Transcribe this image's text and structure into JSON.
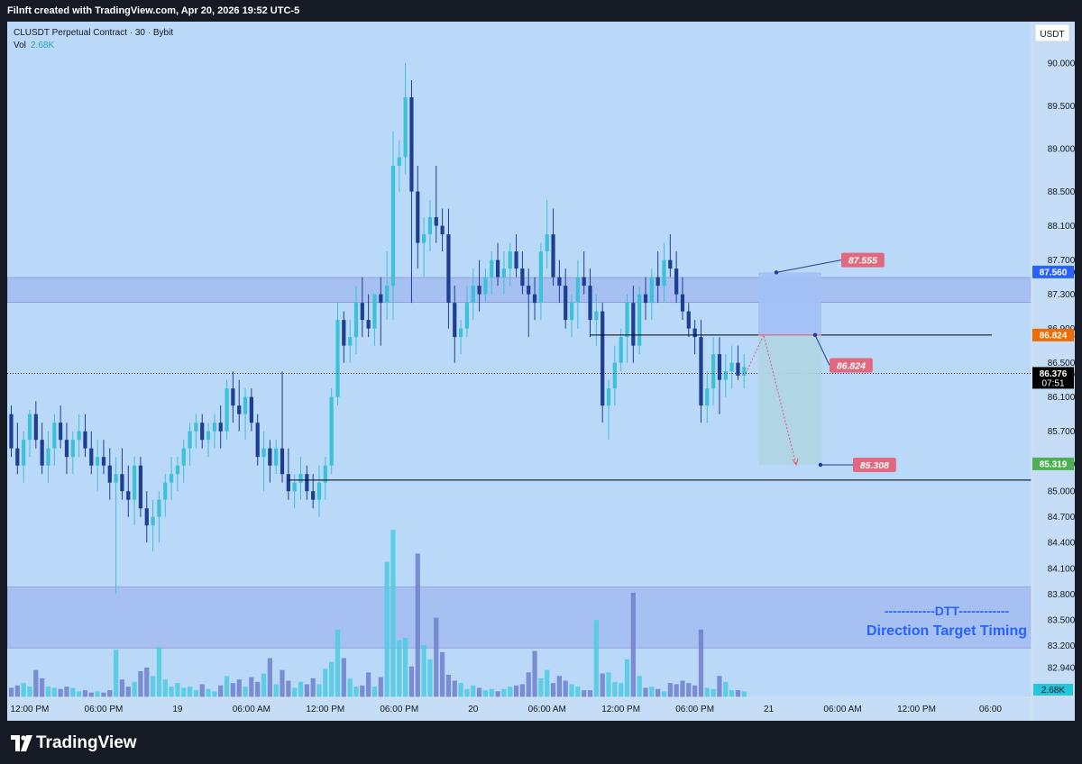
{
  "header": {
    "credit": "Filnft created with TradingView.com, Apr 20, 2026 19:52 UTC-5"
  },
  "legend": {
    "symbol": "CLUSDT Perpetual Contract · 30 · Bybit",
    "vol_label": "Vol",
    "vol_value": "2.68K"
  },
  "currency_button": "USDT",
  "footer": {
    "brand": "TradingView"
  },
  "annotation": {
    "line1": "------------DTT------------",
    "line2": "Direction Target Timing"
  },
  "colors": {
    "bull": "#3bc1d9",
    "bear": "#1c3f94",
    "plot_bg": "#bad8f8",
    "zone": "#9fb8ef",
    "stop": "#e0697f",
    "target": "#4caf50",
    "last": "#000000"
  },
  "chart_data": {
    "type": "candlestick",
    "symbol": "CLUSDT Perpetual Contract",
    "interval": "30",
    "exchange": "Bybit",
    "ylim": [
      82.8,
      90.3
    ],
    "y_ticks": [
      "82.940",
      "83.200",
      "83.500",
      "83.800",
      "84.100",
      "84.400",
      "84.700",
      "85.000",
      "85.319",
      "85.700",
      "86.100",
      "86.376",
      "86.500",
      "86.824",
      "86.900",
      "87.300",
      "87.560",
      "87.700",
      "88.100",
      "88.500",
      "89.000",
      "89.500",
      "90.000"
    ],
    "x_labels": [
      {
        "i": 3,
        "label": "12:00 PM"
      },
      {
        "i": 15,
        "label": "06:00 PM"
      },
      {
        "i": 27,
        "label": "19"
      },
      {
        "i": 39,
        "label": "06:00 AM"
      },
      {
        "i": 51,
        "label": "12:00 PM"
      },
      {
        "i": 63,
        "label": "06:00 PM"
      },
      {
        "i": 75,
        "label": "20"
      },
      {
        "i": 87,
        "label": "06:00 AM"
      },
      {
        "i": 99,
        "label": "12:00 PM"
      },
      {
        "i": 111,
        "label": "06:00 PM"
      },
      {
        "i": 123,
        "label": "21"
      },
      {
        "i": 135,
        "label": "06:00 AM"
      },
      {
        "i": 147,
        "label": "12:00 PM"
      },
      {
        "i": 159,
        "label": "06:00"
      }
    ],
    "volume_current": "2.68K",
    "candles": [
      [
        85.9,
        86.0,
        85.4,
        85.5,
        0.8
      ],
      [
        85.5,
        85.8,
        85.2,
        85.3,
        1.0
      ],
      [
        85.3,
        85.7,
        85.1,
        85.6,
        1.2
      ],
      [
        85.6,
        85.95,
        85.4,
        85.9,
        0.9
      ],
      [
        85.9,
        86.05,
        85.5,
        85.6,
        2.3
      ],
      [
        85.6,
        85.8,
        85.2,
        85.3,
        1.6
      ],
      [
        85.3,
        85.7,
        85.1,
        85.5,
        0.9
      ],
      [
        85.5,
        85.9,
        85.3,
        85.8,
        0.8
      ],
      [
        85.8,
        86.0,
        85.5,
        85.6,
        0.7
      ],
      [
        85.6,
        85.8,
        85.2,
        85.4,
        0.9
      ],
      [
        85.4,
        85.7,
        85.2,
        85.6,
        0.8
      ],
      [
        85.6,
        85.9,
        85.4,
        85.7,
        0.5
      ],
      [
        85.7,
        85.9,
        85.4,
        85.5,
        0.6
      ],
      [
        85.5,
        85.7,
        85.2,
        85.3,
        0.4
      ],
      [
        85.3,
        85.6,
        85.0,
        85.4,
        0.5
      ],
      [
        85.4,
        85.6,
        85.2,
        85.3,
        0.4
      ],
      [
        85.3,
        85.5,
        84.9,
        85.1,
        0.6
      ],
      [
        85.1,
        85.4,
        83.8,
        85.2,
        4.0
      ],
      [
        85.2,
        85.5,
        84.9,
        85.0,
        1.5
      ],
      [
        85.0,
        85.3,
        84.7,
        84.9,
        0.9
      ],
      [
        84.9,
        85.4,
        84.6,
        85.3,
        1.3
      ],
      [
        85.3,
        85.4,
        84.7,
        84.8,
        2.2
      ],
      [
        84.8,
        85.0,
        84.4,
        84.6,
        2.5
      ],
      [
        84.6,
        84.9,
        84.3,
        84.7,
        1.8
      ],
      [
        84.7,
        85.0,
        84.4,
        84.9,
        4.2
      ],
      [
        84.9,
        85.2,
        84.7,
        85.1,
        1.5
      ],
      [
        85.1,
        85.4,
        84.9,
        85.2,
        0.9
      ],
      [
        85.2,
        85.4,
        85.0,
        85.3,
        1.2
      ],
      [
        85.3,
        85.6,
        85.1,
        85.5,
        0.8
      ],
      [
        85.5,
        85.8,
        85.3,
        85.7,
        0.9
      ],
      [
        85.7,
        85.9,
        85.5,
        85.8,
        0.6
      ],
      [
        85.8,
        85.9,
        85.5,
        85.6,
        1.1
      ],
      [
        85.6,
        85.8,
        85.4,
        85.7,
        0.7
      ],
      [
        85.7,
        85.9,
        85.5,
        85.8,
        0.5
      ],
      [
        85.8,
        86.0,
        85.5,
        85.7,
        1.0
      ],
      [
        85.7,
        86.3,
        85.6,
        86.2,
        1.8
      ],
      [
        86.2,
        86.4,
        85.8,
        86.0,
        1.2
      ],
      [
        86.0,
        86.3,
        85.7,
        85.9,
        1.5
      ],
      [
        85.9,
        86.2,
        85.6,
        86.1,
        0.9
      ],
      [
        86.1,
        86.2,
        85.7,
        85.8,
        1.7
      ],
      [
        85.8,
        85.9,
        85.3,
        85.4,
        1.3
      ],
      [
        85.4,
        85.7,
        85.0,
        85.5,
        2.0
      ],
      [
        85.5,
        85.6,
        85.1,
        85.3,
        3.3
      ],
      [
        85.3,
        85.6,
        85.2,
        85.5,
        1.1
      ],
      [
        85.5,
        86.4,
        85.1,
        85.2,
        2.3
      ],
      [
        85.2,
        85.5,
        84.9,
        85.0,
        1.4
      ],
      [
        85.0,
        85.2,
        84.8,
        85.1,
        0.8
      ],
      [
        85.1,
        85.4,
        84.9,
        85.2,
        1.3
      ],
      [
        85.2,
        85.3,
        84.9,
        85.0,
        1.1
      ],
      [
        85.0,
        85.2,
        84.8,
        84.9,
        1.6
      ],
      [
        84.9,
        85.3,
        84.7,
        85.1,
        1.1
      ],
      [
        85.1,
        85.4,
        84.9,
        85.3,
        2.4
      ],
      [
        85.3,
        86.2,
        85.2,
        86.1,
        3.0
      ],
      [
        86.1,
        87.2,
        86.0,
        87.0,
        5.7
      ],
      [
        87.0,
        87.1,
        86.5,
        86.7,
        3.3
      ],
      [
        86.7,
        87.0,
        86.5,
        86.8,
        1.6
      ],
      [
        86.8,
        87.4,
        86.6,
        87.2,
        0.9
      ],
      [
        87.2,
        87.5,
        86.8,
        87.0,
        1.0
      ],
      [
        87.0,
        87.3,
        86.8,
        86.9,
        2.1
      ],
      [
        86.9,
        87.3,
        86.7,
        87.3,
        0.9
      ],
      [
        87.3,
        87.5,
        86.7,
        87.2,
        1.7
      ],
      [
        87.2,
        87.8,
        87.0,
        87.4,
        11.4
      ],
      [
        87.4,
        89.2,
        87.0,
        88.8,
        14.1
      ],
      [
        88.8,
        89.1,
        88.5,
        88.9,
        4.8
      ],
      [
        88.9,
        90.0,
        88.7,
        89.6,
        5.0
      ],
      [
        89.6,
        89.8,
        87.2,
        88.5,
        2.6
      ],
      [
        88.5,
        88.8,
        87.6,
        87.9,
        12.1
      ],
      [
        87.9,
        88.2,
        87.5,
        88.0,
        4.4
      ],
      [
        88.0,
        88.4,
        87.8,
        88.2,
        3.2
      ],
      [
        88.2,
        88.8,
        87.9,
        88.1,
        6.7
      ],
      [
        88.1,
        88.3,
        87.8,
        88.0,
        3.8
      ],
      [
        88.0,
        88.3,
        86.9,
        87.2,
        1.9
      ],
      [
        87.2,
        87.4,
        86.5,
        86.8,
        1.4
      ],
      [
        86.8,
        87.0,
        86.6,
        86.9,
        1.2
      ],
      [
        86.9,
        87.4,
        86.8,
        87.2,
        0.7
      ],
      [
        87.2,
        87.6,
        87.0,
        87.4,
        1.0
      ],
      [
        87.4,
        87.7,
        87.1,
        87.3,
        0.8
      ],
      [
        87.3,
        87.6,
        87.2,
        87.5,
        0.6
      ],
      [
        87.5,
        87.8,
        87.3,
        87.7,
        0.7
      ],
      [
        87.7,
        87.9,
        87.4,
        87.5,
        0.5
      ],
      [
        87.5,
        87.8,
        87.3,
        87.6,
        0.7
      ],
      [
        87.6,
        87.9,
        87.4,
        87.8,
        0.9
      ],
      [
        87.8,
        88.0,
        87.5,
        87.6,
        1.0
      ],
      [
        87.6,
        87.8,
        87.3,
        87.4,
        1.1
      ],
      [
        87.4,
        87.6,
        86.8,
        87.3,
        2.1
      ],
      [
        87.3,
        87.5,
        87.0,
        87.2,
        3.9
      ],
      [
        87.2,
        87.9,
        87.0,
        87.8,
        1.6
      ],
      [
        87.8,
        88.4,
        87.6,
        88.0,
        2.3
      ],
      [
        88.0,
        88.3,
        87.4,
        87.5,
        1.2
      ],
      [
        87.5,
        87.7,
        87.2,
        87.4,
        1.8
      ],
      [
        87.4,
        87.6,
        86.9,
        87.0,
        1.4
      ],
      [
        87.0,
        87.3,
        86.8,
        87.2,
        1.1
      ],
      [
        87.2,
        87.7,
        86.9,
        87.5,
        0.9
      ],
      [
        87.5,
        87.8,
        87.3,
        87.4,
        0.6
      ],
      [
        87.4,
        87.6,
        86.8,
        87.0,
        0.6
      ],
      [
        87.0,
        87.3,
        86.7,
        87.1,
        6.5
      ],
      [
        87.1,
        87.2,
        85.8,
        86.0,
        2.0
      ],
      [
        86.0,
        86.3,
        85.6,
        86.2,
        2.1
      ],
      [
        86.2,
        86.7,
        86.0,
        86.5,
        1.3
      ],
      [
        86.5,
        86.9,
        86.4,
        86.8,
        1.2
      ],
      [
        86.8,
        87.3,
        86.5,
        87.2,
        3.2
      ],
      [
        87.2,
        87.4,
        86.5,
        86.7,
        8.8
      ],
      [
        86.7,
        87.4,
        86.6,
        87.3,
        1.8
      ],
      [
        87.3,
        87.5,
        87.0,
        87.2,
        0.8
      ],
      [
        87.2,
        87.6,
        87.0,
        87.5,
        0.9
      ],
      [
        87.5,
        87.8,
        87.2,
        87.4,
        0.7
      ],
      [
        87.4,
        87.9,
        87.2,
        87.7,
        0.5
      ],
      [
        87.7,
        88.0,
        87.5,
        87.6,
        1.2
      ],
      [
        87.6,
        87.8,
        87.2,
        87.3,
        1.1
      ],
      [
        87.3,
        87.5,
        87.0,
        87.1,
        1.4
      ],
      [
        87.1,
        87.2,
        86.8,
        86.9,
        1.2
      ],
      [
        86.9,
        87.0,
        86.6,
        86.8,
        1.0
      ],
      [
        86.8,
        87.0,
        85.8,
        86.0,
        5.7
      ],
      [
        86.0,
        86.4,
        85.8,
        86.2,
        0.8
      ],
      [
        86.2,
        86.8,
        86.0,
        86.6,
        0.7
      ],
      [
        86.6,
        86.8,
        85.9,
        86.3,
        1.8
      ],
      [
        86.3,
        86.6,
        86.1,
        86.4,
        1.3
      ],
      [
        86.4,
        86.7,
        86.2,
        86.5,
        0.6
      ],
      [
        86.5,
        86.7,
        86.3,
        86.35,
        0.6
      ],
      [
        86.35,
        86.6,
        86.2,
        86.45,
        0.5
      ]
    ],
    "levels": [
      {
        "name": "entry",
        "value": 86.824,
        "label": "86.824"
      },
      {
        "name": "target",
        "value": 85.308,
        "label": "85.308"
      },
      {
        "name": "stop",
        "value": 87.555,
        "label": "87.555"
      },
      {
        "name": "support",
        "value": 85.13
      }
    ],
    "price_badges": [
      {
        "value": 87.56,
        "label": "87.560",
        "color": "#2962ff",
        "text_color": "#ffffff"
      },
      {
        "value": 86.824,
        "label": "86.824",
        "color": "#ef6c00",
        "text_color": "#ffffff"
      },
      {
        "value": 86.376,
        "label": "86.376",
        "sub": "07:51",
        "color": "#000000",
        "text_color": "#ffffff"
      },
      {
        "value": 85.319,
        "label": "85.319",
        "color": "#4caf50",
        "text_color": "#ffffff"
      }
    ],
    "zones": [
      {
        "from": 87.205,
        "to": 87.495
      },
      {
        "from": 83.17,
        "to": 83.88
      }
    ]
  }
}
